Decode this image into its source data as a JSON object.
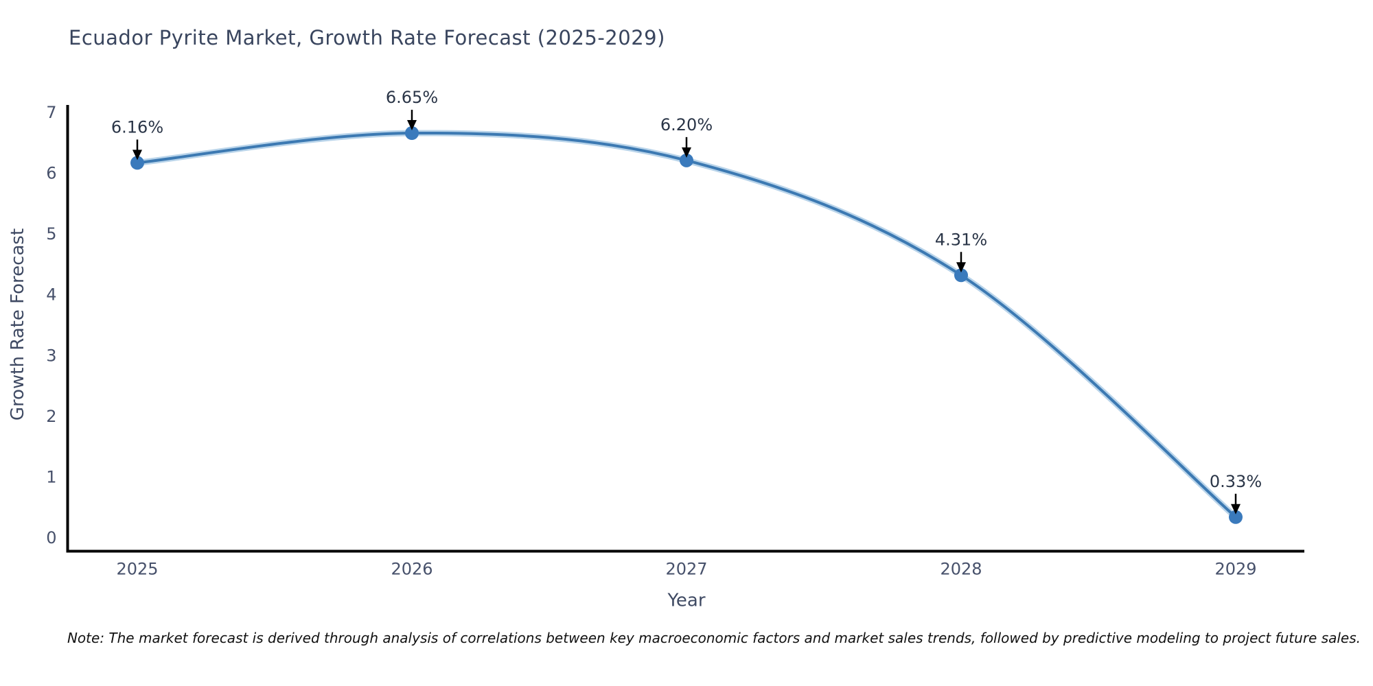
{
  "title": "Ecuador Pyrite Market, Growth Rate Forecast (2025-2029)",
  "note": "Note: The market forecast is derived through analysis of correlations between key macroeconomic factors and market sales trends, followed by predictive modeling to project future sales.",
  "chart_data": {
    "type": "line",
    "title": "Ecuador Pyrite Market, Growth Rate Forecast (2025-2029)",
    "xlabel": "Year",
    "ylabel": "Growth Rate Forecast",
    "categories": [
      "2025",
      "2026",
      "2027",
      "2028",
      "2029"
    ],
    "series": [
      {
        "name": "Growth Rate Forecast",
        "values": [
          6.16,
          6.65,
          6.2,
          4.31,
          0.33
        ]
      }
    ],
    "point_labels": [
      "6.16%",
      "6.65%",
      "6.20%",
      "4.31%",
      "0.33%"
    ],
    "ylim": [
      0,
      7
    ],
    "ytick_step": 1,
    "grid": false,
    "legend_position": "none",
    "line_style": "spline",
    "colors": {
      "line": "#3c79b2",
      "line_halo": "#b9d4ea",
      "marker": "#3a7abc",
      "axis": "#000000",
      "annotation_arrow": "#000000"
    }
  }
}
